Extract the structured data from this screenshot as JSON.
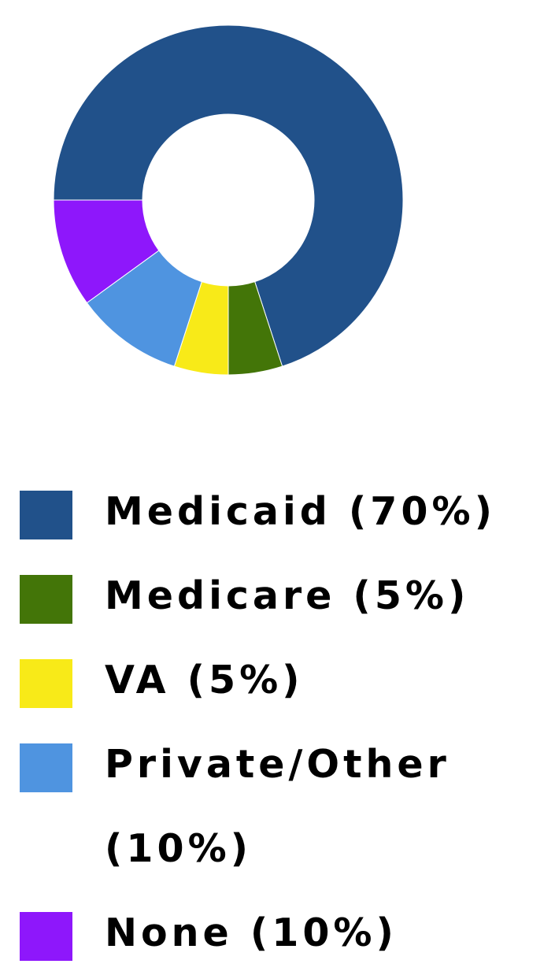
{
  "chart_data": {
    "type": "donut",
    "categories": [
      "Medicaid (70%)",
      "Medicare (5%)",
      "VA (5%)",
      "Private/Other (10%)",
      "None (10%)"
    ],
    "values": [
      70,
      5,
      5,
      10,
      10
    ],
    "colors": [
      "#21518a",
      "#437508",
      "#f8ea18",
      "#4f94e0",
      "#8e17fb"
    ]
  }
}
